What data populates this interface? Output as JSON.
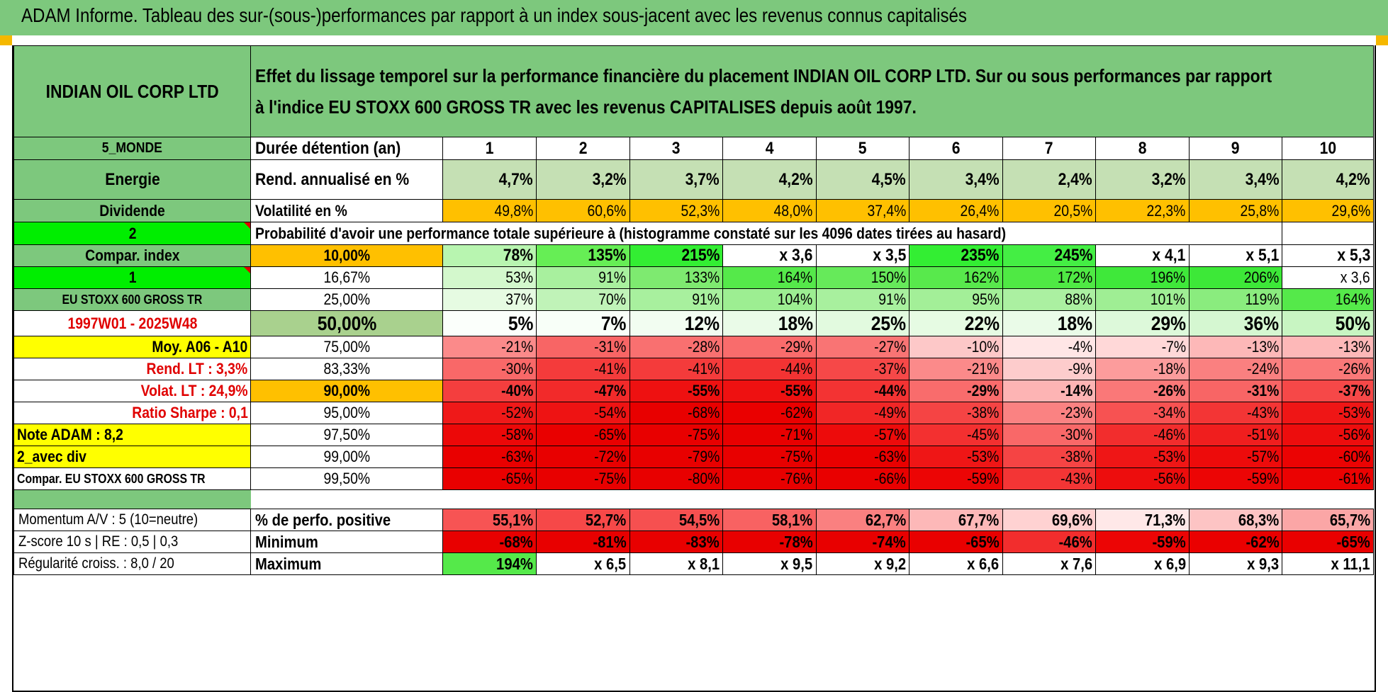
{
  "report_title": "ADAM Informe. Tableau des sur-(sous-)performances par rapport à un index sous-jacent avec les revenus connus capitalisés",
  "company": "INDIAN OIL CORP LTD",
  "description_line1": "Effet du lissage temporel sur la performance financière du placement INDIAN OIL CORP LTD. Sur ou sous performances par rapport",
  "description_line2": "à l'indice EU STOXX 600 GROSS TR avec les revenus CAPITALISES depuis août 1997.",
  "left_labels": {
    "region": "5_MONDE",
    "sector": "Energie",
    "type": "Dividende",
    "value_2": "2",
    "compar_index": "Compar. index",
    "value_1": "1",
    "index_name": "EU STOXX 600 GROSS TR",
    "period": "1997W01 - 2025W48",
    "moy": "Moy. A06 - A10",
    "rend_lt": "Rend. LT :    3,3%",
    "volat_lt": "Volat. LT :    24,9%",
    "sharpe": "Ratio Sharpe :    0,1",
    "note": "Note ADAM : 8,2",
    "avec_div": "2_avec div",
    "compar_eu": "Compar. EU STOXX 600 GROSS TR"
  },
  "header_row": {
    "label": "Durée détention (an)",
    "years": [
      "1",
      "2",
      "3",
      "4",
      "5",
      "6",
      "7",
      "8",
      "9",
      "10"
    ]
  },
  "rend_row": {
    "label": "Rend. annualisé en %",
    "values": [
      "4,7%",
      "3,2%",
      "3,7%",
      "4,2%",
      "4,5%",
      "3,4%",
      "2,4%",
      "3,2%",
      "3,4%",
      "4,2%"
    ]
  },
  "vol_row": {
    "label": "Volatilité en %",
    "values": [
      "49,8%",
      "60,6%",
      "52,3%",
      "48,0%",
      "37,4%",
      "26,4%",
      "20,5%",
      "22,3%",
      "25,8%",
      "29,6%"
    ]
  },
  "prob_title": "Probabilité d'avoir une performance totale supérieure à (histogramme constaté sur les 4096 dates tirées au hasard)",
  "prob_rows": [
    {
      "pct": "10,00%",
      "values": [
        "78%",
        "135%",
        "215%",
        "x 3,6",
        "x 3,5",
        "235%",
        "245%",
        "x 4,1",
        "x 5,1",
        "x 5,3"
      ],
      "colors": [
        "#b8f5b0",
        "#66ee55",
        "#33ee33",
        "#ffffff",
        "#ffffff",
        "#33ee33",
        "#44ee44",
        "#ffffff",
        "#ffffff",
        "#ffffff"
      ]
    },
    {
      "pct": "16,67%",
      "values": [
        "53%",
        "91%",
        "133%",
        "164%",
        "150%",
        "162%",
        "172%",
        "196%",
        "206%",
        "x 3,6"
      ],
      "colors": [
        "#d3f8cc",
        "#a8f09e",
        "#7eea70",
        "#55e94a",
        "#66ea5a",
        "#58e94c",
        "#4fe944",
        "#3fe83a",
        "#3de838",
        "#ffffff"
      ]
    },
    {
      "pct": "25,00%",
      "values": [
        "37%",
        "70%",
        "91%",
        "104%",
        "91%",
        "95%",
        "88%",
        "101%",
        "119%",
        "164%"
      ],
      "colors": [
        "#e6fbe2",
        "#c0f3b8",
        "#a8f09e",
        "#9dee92",
        "#a8f09e",
        "#a3ef98",
        "#abf0a1",
        "#9fee94",
        "#8aec7e",
        "#55e94a"
      ]
    },
    {
      "pct": "50,00%",
      "values": [
        "5%",
        "7%",
        "12%",
        "18%",
        "25%",
        "22%",
        "18%",
        "29%",
        "36%",
        "50%"
      ],
      "colors": [
        "#fbfffb",
        "#f8fff8",
        "#f2fdf1",
        "#eafbe8",
        "#e2fadf",
        "#e6fbe3",
        "#eafbe8",
        "#ddf9da",
        "#d5f7d1",
        "#c8f5c2"
      ]
    },
    {
      "pct": "75,00%",
      "values": [
        "-21%",
        "-31%",
        "-28%",
        "-29%",
        "-27%",
        "-10%",
        "-4%",
        "-7%",
        "-13%",
        "-13%"
      ],
      "colors": [
        "#fb8a8a",
        "#f86565",
        "#f97070",
        "#f96c6c",
        "#f97474",
        "#fdc8c8",
        "#ffe6e6",
        "#ffd8d8",
        "#fdb8b8",
        "#fdb8b8"
      ]
    },
    {
      "pct": "83,33%",
      "values": [
        "-30%",
        "-41%",
        "-41%",
        "-44%",
        "-37%",
        "-21%",
        "-9%",
        "-18%",
        "-24%",
        "-26%"
      ],
      "colors": [
        "#f96868",
        "#f43b3b",
        "#f43b3b",
        "#f33333",
        "#f64848",
        "#fb8a8a",
        "#fdcccc",
        "#fc9c9c",
        "#fa8080",
        "#fa7878"
      ]
    },
    {
      "pct": "90,00%",
      "values": [
        "-40%",
        "-47%",
        "-55%",
        "-55%",
        "-44%",
        "-29%",
        "-14%",
        "-26%",
        "-31%",
        "-37%"
      ],
      "colors": [
        "#f43e3e",
        "#f22a2a",
        "#ee1111",
        "#ee1111",
        "#f33333",
        "#f96c6c",
        "#fdb4b4",
        "#fa7878",
        "#f86565",
        "#f64848"
      ]
    },
    {
      "pct": "95,00%",
      "values": [
        "-52%",
        "-54%",
        "-68%",
        "-62%",
        "-49%",
        "-38%",
        "-23%",
        "-34%",
        "-43%",
        "-53%"
      ],
      "colors": [
        "#ef1919",
        "#ee1313",
        "#e80000",
        "#ea0000",
        "#f12626",
        "#f54444",
        "#fa8282",
        "#f75252",
        "#f33535",
        "#ef1616"
      ]
    },
    {
      "pct": "97,50%",
      "values": [
        "-58%",
        "-65%",
        "-75%",
        "-71%",
        "-57%",
        "-45%",
        "-30%",
        "-46%",
        "-51%",
        "-56%"
      ],
      "colors": [
        "#ec0808",
        "#e90000",
        "#e80000",
        "#e80000",
        "#ed0b0b",
        "#f33030",
        "#f96868",
        "#f22d2d",
        "#f01e1e",
        "#ed0d0d"
      ]
    },
    {
      "pct": "99,00%",
      "values": [
        "-63%",
        "-72%",
        "-79%",
        "-75%",
        "-63%",
        "-53%",
        "-38%",
        "-53%",
        "-57%",
        "-60%"
      ],
      "colors": [
        "#e90000",
        "#e80000",
        "#e80000",
        "#e80000",
        "#e90000",
        "#ef1616",
        "#f54444",
        "#ef1616",
        "#ed0b0b",
        "#eb0303"
      ]
    },
    {
      "pct": "99,50%",
      "values": [
        "-65%",
        "-75%",
        "-80%",
        "-76%",
        "-66%",
        "-59%",
        "-43%",
        "-56%",
        "-59%",
        "-61%"
      ],
      "colors": [
        "#e90000",
        "#e80000",
        "#e80000",
        "#e80000",
        "#e90000",
        "#ec0505",
        "#f33535",
        "#ed0d0d",
        "#ec0505",
        "#eb0202"
      ]
    }
  ],
  "pct_colors": [
    "#ffc000",
    "#ffffff",
    "#ffffff",
    "#a9d18e",
    "#ffffff",
    "#ffffff",
    "#ffc000",
    "#ffffff",
    "#ffffff",
    "#ffffff",
    "#ffffff"
  ],
  "bottom_rows": [
    {
      "left": "Momentum A/V : 5 (10=neutre)",
      "label": "% de perfo. positive",
      "values": [
        "55,1%",
        "52,7%",
        "54,5%",
        "58,1%",
        "62,7%",
        "67,7%",
        "69,6%",
        "71,3%",
        "68,3%",
        "65,7%"
      ],
      "colors": [
        "#f75454",
        "#f64848",
        "#f65050",
        "#f86262",
        "#fa8080",
        "#fdb8b8",
        "#ffd2d2",
        "#ffe8e8",
        "#fdc4c4",
        "#fba6a6"
      ]
    },
    {
      "left": "Z-score 10 s | RE : 0,5 | 0,3",
      "label": "Minimum",
      "values": [
        "-68%",
        "-81%",
        "-83%",
        "-78%",
        "-74%",
        "-65%",
        "-46%",
        "-59%",
        "-62%",
        "-65%"
      ],
      "colors": [
        "#e80000",
        "#e80000",
        "#e80000",
        "#e80000",
        "#e80000",
        "#e90000",
        "#f22d2d",
        "#ec0505",
        "#ea0000",
        "#e90000"
      ]
    },
    {
      "left": "Régularité croiss. : 8,0 / 20",
      "label": "Maximum",
      "values": [
        "194%",
        "x 6,5",
        "x 8,1",
        "x 9,5",
        "x 9,2",
        "x 6,6",
        "x 7,6",
        "x 6,9",
        "x 9,3",
        "x 11,1"
      ],
      "colors": [
        "#55e94a",
        "#ffffff",
        "#ffffff",
        "#ffffff",
        "#ffffff",
        "#ffffff",
        "#ffffff",
        "#ffffff",
        "#ffffff",
        "#ffffff"
      ]
    }
  ],
  "colors": {
    "header_green": "#7dc87d",
    "bright_green": "#00ee00",
    "orange": "#ffc000",
    "yellow": "#ffff00",
    "rend_green": "#c5e0b4"
  }
}
